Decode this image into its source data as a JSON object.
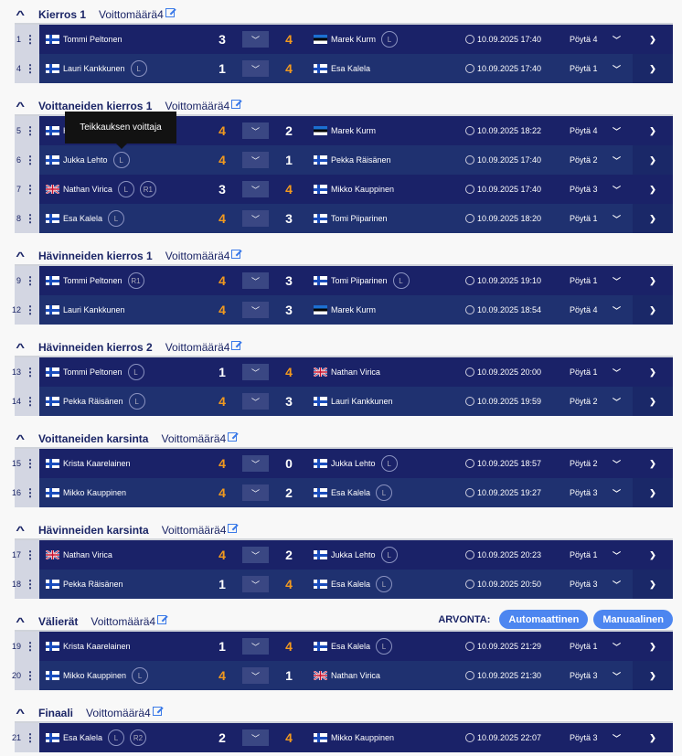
{
  "wins_label": "Voittomäärä4",
  "tooltip": "Teikkauksen voittaja",
  "colors": {
    "score_win": "#f39a1e",
    "row": "#1a2268",
    "row_alt": "#1f3170",
    "button": "#4d86f0"
  },
  "draw": {
    "label": "ARVONTA:",
    "auto": "Automaattinen",
    "manual": "Manuaalinen"
  },
  "sections": [
    {
      "title": "Kierros 1",
      "matches": [
        {
          "no": "1",
          "p1": {
            "flag": "fi",
            "name": "Tommi Peltonen",
            "badges": []
          },
          "s1": "3",
          "s2": "4",
          "p2": {
            "flag": "ee",
            "name": "Marek Kurm",
            "badges": [
              "L"
            ]
          },
          "time": "10.09.2025 17:40",
          "table": "Pöytä 4"
        },
        {
          "no": "4",
          "p1": {
            "flag": "fi",
            "name": "Lauri Kankkunen",
            "badges": [
              "L"
            ]
          },
          "s1": "1",
          "s2": "4",
          "p2": {
            "flag": "fi",
            "name": "Esa Kalela",
            "badges": []
          },
          "time": "10.09.2025 17:40",
          "table": "Pöytä 1"
        }
      ]
    },
    {
      "title": "Voittaneiden kierros 1",
      "matches": [
        {
          "no": "5",
          "p1": {
            "flag": "fi",
            "name": "H",
            "badges": []
          },
          "s1": "4",
          "s2": "2",
          "p2": {
            "flag": "ee",
            "name": "Marek Kurm",
            "badges": []
          },
          "time": "10.09.2025 18:22",
          "table": "Pöytä 4"
        },
        {
          "no": "6",
          "p1": {
            "flag": "fi",
            "name": "Jukka Lehto",
            "badges": [
              "L"
            ]
          },
          "s1": "4",
          "s2": "1",
          "p2": {
            "flag": "fi",
            "name": "Pekka Räisänen",
            "badges": []
          },
          "time": "10.09.2025 17:40",
          "table": "Pöytä 2"
        },
        {
          "no": "7",
          "p1": {
            "flag": "gb",
            "name": "Nathan Virica",
            "badges": [
              "L",
              "R1"
            ]
          },
          "s1": "3",
          "s2": "4",
          "p2": {
            "flag": "fi",
            "name": "Mikko Kauppinen",
            "badges": []
          },
          "time": "10.09.2025 17:40",
          "table": "Pöytä 3"
        },
        {
          "no": "8",
          "p1": {
            "flag": "fi",
            "name": "Esa Kalela",
            "badges": [
              "L"
            ]
          },
          "s1": "4",
          "s2": "3",
          "p2": {
            "flag": "fi",
            "name": "Tomi Piiparinen",
            "badges": []
          },
          "time": "10.09.2025 18:20",
          "table": "Pöytä 1"
        }
      ]
    },
    {
      "title": "Hävinneiden kierros 1",
      "matches": [
        {
          "no": "9",
          "p1": {
            "flag": "fi",
            "name": "Tommi Peltonen",
            "badges": [
              "R1"
            ]
          },
          "s1": "4",
          "s2": "3",
          "p2": {
            "flag": "fi",
            "name": "Tomi Piiparinen",
            "badges": [
              "L"
            ]
          },
          "time": "10.09.2025 19:10",
          "table": "Pöytä 1"
        },
        {
          "no": "12",
          "p1": {
            "flag": "fi",
            "name": "Lauri Kankkunen",
            "badges": []
          },
          "s1": "4",
          "s2": "3",
          "p2": {
            "flag": "ee",
            "name": "Marek Kurm",
            "badges": []
          },
          "time": "10.09.2025 18:54",
          "table": "Pöytä 4"
        }
      ]
    },
    {
      "title": "Hävinneiden kierros 2",
      "matches": [
        {
          "no": "13",
          "p1": {
            "flag": "fi",
            "name": "Tommi Peltonen",
            "badges": [
              "L"
            ]
          },
          "s1": "1",
          "s2": "4",
          "p2": {
            "flag": "gb",
            "name": "Nathan Virica",
            "badges": []
          },
          "time": "10.09.2025 20:00",
          "table": "Pöytä 1"
        },
        {
          "no": "14",
          "p1": {
            "flag": "fi",
            "name": "Pekka Räisänen",
            "badges": [
              "L"
            ]
          },
          "s1": "4",
          "s2": "3",
          "p2": {
            "flag": "fi",
            "name": "Lauri Kankkunen",
            "badges": []
          },
          "time": "10.09.2025 19:59",
          "table": "Pöytä 2"
        }
      ]
    },
    {
      "title": "Voittaneiden karsinta",
      "matches": [
        {
          "no": "15",
          "p1": {
            "flag": "fi",
            "name": "Krista Kaarelainen",
            "badges": []
          },
          "s1": "4",
          "s2": "0",
          "p2": {
            "flag": "fi",
            "name": "Jukka Lehto",
            "badges": [
              "L"
            ]
          },
          "time": "10.09.2025 18:57",
          "table": "Pöytä 2"
        },
        {
          "no": "16",
          "p1": {
            "flag": "fi",
            "name": "Mikko Kauppinen",
            "badges": []
          },
          "s1": "4",
          "s2": "2",
          "p2": {
            "flag": "fi",
            "name": "Esa Kalela",
            "badges": [
              "L"
            ]
          },
          "time": "10.09.2025 19:27",
          "table": "Pöytä 3"
        }
      ]
    },
    {
      "title": "Hävinneiden karsinta",
      "matches": [
        {
          "no": "17",
          "p1": {
            "flag": "gb",
            "name": "Nathan Virica",
            "badges": []
          },
          "s1": "4",
          "s2": "2",
          "p2": {
            "flag": "fi",
            "name": "Jukka Lehto",
            "badges": [
              "L"
            ]
          },
          "time": "10.09.2025 20:23",
          "table": "Pöytä 1"
        },
        {
          "no": "18",
          "p1": {
            "flag": "fi",
            "name": "Pekka Räisänen",
            "badges": []
          },
          "s1": "1",
          "s2": "4",
          "p2": {
            "flag": "fi",
            "name": "Esa Kalela",
            "badges": [
              "L"
            ]
          },
          "time": "10.09.2025 20:50",
          "table": "Pöytä 3"
        }
      ]
    },
    {
      "title": "Välierät",
      "draw": true,
      "matches": [
        {
          "no": "19",
          "p1": {
            "flag": "fi",
            "name": "Krista Kaarelainen",
            "badges": []
          },
          "s1": "1",
          "s2": "4",
          "p2": {
            "flag": "fi",
            "name": "Esa Kalela",
            "badges": [
              "L"
            ]
          },
          "time": "10.09.2025 21:29",
          "table": "Pöytä 1"
        },
        {
          "no": "20",
          "p1": {
            "flag": "fi",
            "name": "Mikko Kauppinen",
            "badges": [
              "L"
            ]
          },
          "s1": "4",
          "s2": "1",
          "p2": {
            "flag": "gb",
            "name": "Nathan Virica",
            "badges": []
          },
          "time": "10.09.2025 21:30",
          "table": "Pöytä 3"
        }
      ]
    },
    {
      "title": "Finaali",
      "matches": [
        {
          "no": "21",
          "p1": {
            "flag": "fi",
            "name": "Esa Kalela",
            "badges": [
              "L",
              "R2"
            ]
          },
          "s1": "2",
          "s2": "4",
          "p2": {
            "flag": "fi",
            "name": "Mikko Kauppinen",
            "badges": []
          },
          "time": "10.09.2025 22:07",
          "table": "Pöytä 3"
        }
      ]
    }
  ]
}
